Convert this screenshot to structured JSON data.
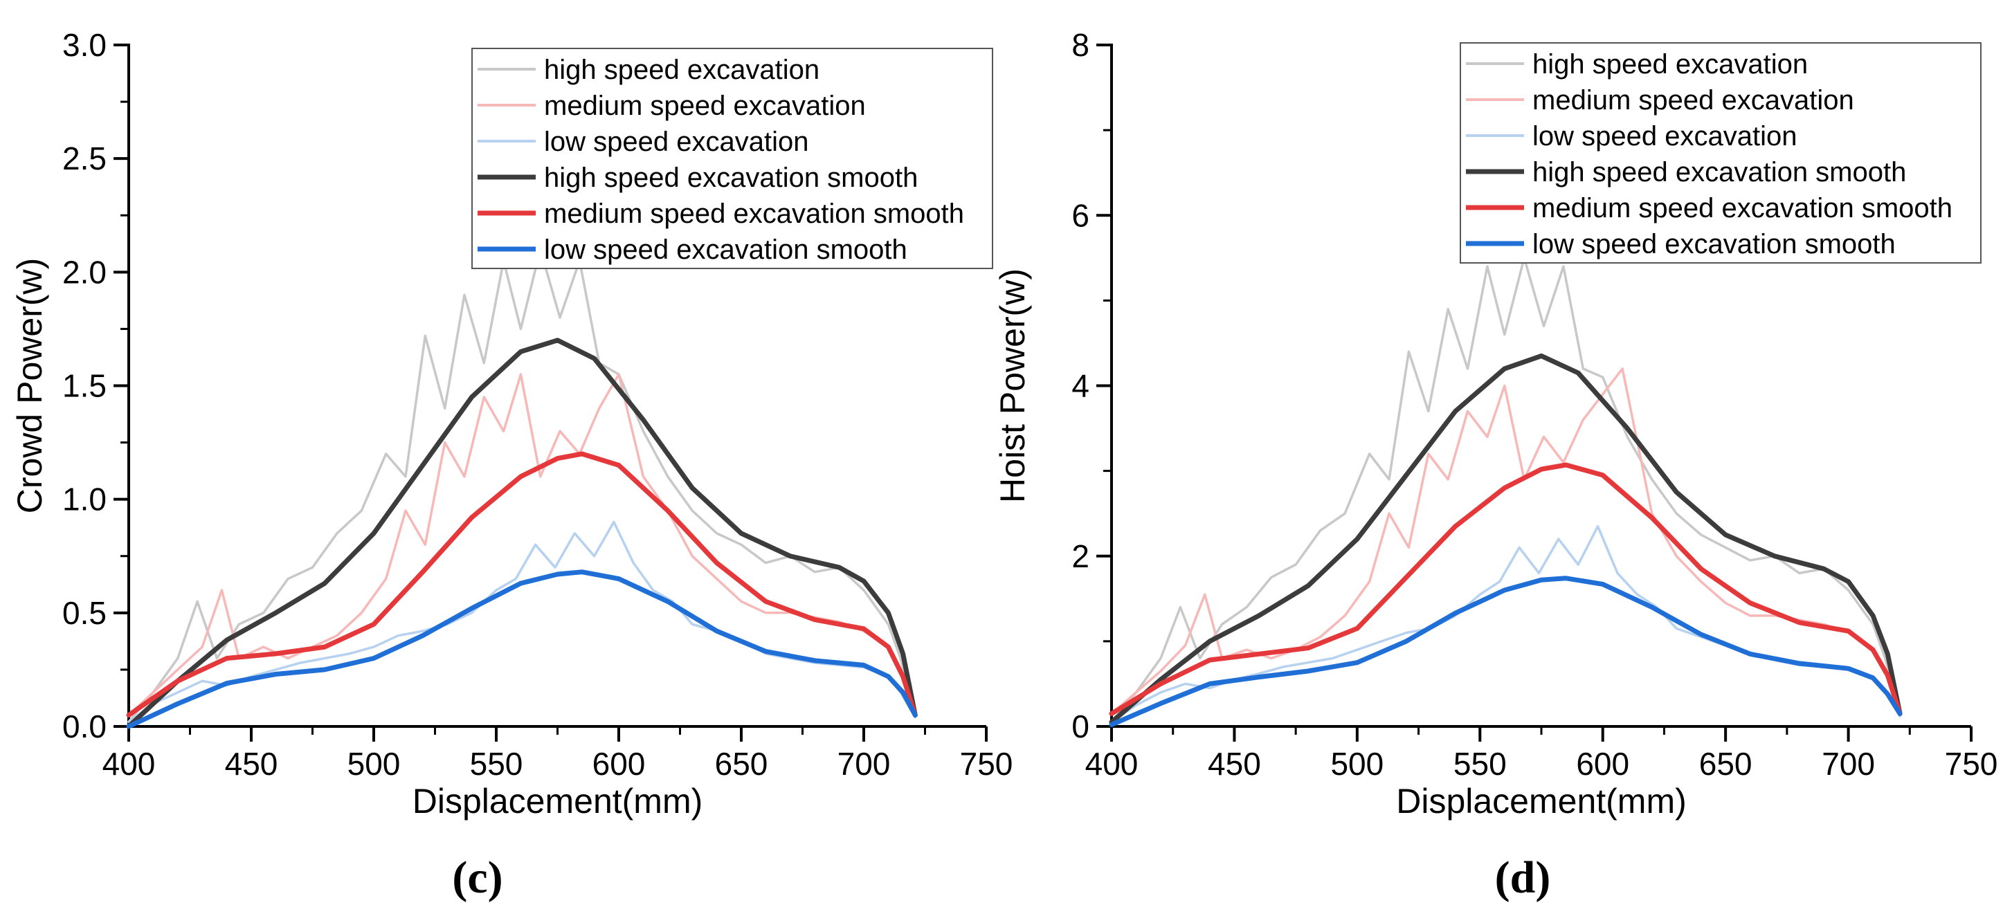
{
  "colors": {
    "high_raw": "#c8c8c8",
    "medium_raw": "#f7b8b8",
    "low_raw": "#b7d1f0",
    "high_smooth": "#3c3c3c",
    "medium_smooth": "#e5383b",
    "low_smooth": "#1f6fd6"
  },
  "chart_data": [
    {
      "type": "line",
      "panel_label": "(c)",
      "title": "",
      "xlabel": "Displacement(mm)",
      "ylabel": "Crowd Power(w)",
      "xlim": [
        400,
        750
      ],
      "ylim": [
        0,
        3.0
      ],
      "xticks": [
        400,
        450,
        500,
        550,
        600,
        650,
        700,
        750
      ],
      "yticks": [
        0.0,
        0.5,
        1.0,
        1.5,
        2.0,
        2.5,
        3.0
      ],
      "xtick_labels": [
        "400",
        "450",
        "500",
        "550",
        "600",
        "650",
        "700",
        "750"
      ],
      "ytick_labels": [
        "0.0",
        "0.5",
        "1.0",
        "1.5",
        "2.0",
        "2.5",
        "3.0"
      ],
      "legend_position": "top-right",
      "series": [
        {
          "name": "high speed excavation",
          "style": "raw",
          "color_key": "high_raw",
          "x": [
            400,
            410,
            420,
            428,
            436,
            445,
            455,
            465,
            475,
            485,
            495,
            505,
            513,
            521,
            529,
            537,
            545,
            553,
            560,
            568,
            576,
            584,
            592,
            600,
            610,
            620,
            630,
            640,
            650,
            660,
            670,
            680,
            690,
            700,
            710,
            715,
            721
          ],
          "y": [
            0.02,
            0.15,
            0.3,
            0.55,
            0.3,
            0.45,
            0.5,
            0.65,
            0.7,
            0.85,
            0.95,
            1.2,
            1.1,
            1.72,
            1.4,
            1.9,
            1.6,
            2.05,
            1.75,
            2.1,
            1.8,
            2.05,
            1.6,
            1.55,
            1.3,
            1.1,
            0.95,
            0.85,
            0.8,
            0.72,
            0.75,
            0.68,
            0.7,
            0.6,
            0.45,
            0.3,
            0.05
          ]
        },
        {
          "name": "medium speed excavation",
          "style": "raw",
          "color_key": "medium_raw",
          "x": [
            400,
            410,
            420,
            430,
            438,
            445,
            455,
            465,
            475,
            485,
            495,
            505,
            513,
            521,
            529,
            537,
            545,
            553,
            560,
            568,
            576,
            584,
            592,
            600,
            610,
            620,
            630,
            640,
            650,
            660,
            670,
            680,
            690,
            700,
            710,
            715,
            721
          ],
          "y": [
            0.05,
            0.15,
            0.25,
            0.35,
            0.6,
            0.3,
            0.35,
            0.3,
            0.35,
            0.4,
            0.5,
            0.65,
            0.95,
            0.8,
            1.25,
            1.1,
            1.45,
            1.3,
            1.55,
            1.1,
            1.3,
            1.2,
            1.4,
            1.55,
            1.1,
            0.95,
            0.75,
            0.65,
            0.55,
            0.5,
            0.5,
            0.48,
            0.46,
            0.42,
            0.35,
            0.25,
            0.05
          ]
        },
        {
          "name": "low speed excavation",
          "style": "raw",
          "color_key": "low_raw",
          "x": [
            400,
            410,
            420,
            430,
            440,
            450,
            460,
            470,
            480,
            490,
            500,
            510,
            520,
            530,
            540,
            550,
            558,
            566,
            574,
            582,
            590,
            598,
            606,
            614,
            622,
            630,
            640,
            650,
            660,
            670,
            680,
            690,
            700,
            710,
            715,
            721
          ],
          "y": [
            0.02,
            0.1,
            0.15,
            0.2,
            0.18,
            0.22,
            0.25,
            0.28,
            0.3,
            0.32,
            0.35,
            0.4,
            0.42,
            0.45,
            0.5,
            0.6,
            0.65,
            0.8,
            0.7,
            0.85,
            0.75,
            0.9,
            0.72,
            0.6,
            0.55,
            0.45,
            0.42,
            0.38,
            0.32,
            0.3,
            0.28,
            0.27,
            0.26,
            0.22,
            0.15,
            0.04
          ]
        },
        {
          "name": "high speed excavation smooth",
          "style": "smooth",
          "color_key": "high_smooth",
          "x": [
            400,
            420,
            440,
            460,
            480,
            500,
            520,
            540,
            560,
            575,
            590,
            610,
            630,
            650,
            670,
            690,
            700,
            710,
            716,
            721
          ],
          "y": [
            0.0,
            0.2,
            0.38,
            0.5,
            0.63,
            0.85,
            1.15,
            1.45,
            1.65,
            1.7,
            1.62,
            1.35,
            1.05,
            0.85,
            0.75,
            0.7,
            0.64,
            0.5,
            0.32,
            0.05
          ]
        },
        {
          "name": "medium speed excavation smooth",
          "style": "smooth",
          "color_key": "medium_smooth",
          "x": [
            400,
            420,
            440,
            460,
            480,
            500,
            520,
            540,
            560,
            575,
            585,
            600,
            620,
            640,
            660,
            680,
            700,
            710,
            716,
            721
          ],
          "y": [
            0.05,
            0.2,
            0.3,
            0.32,
            0.35,
            0.45,
            0.68,
            0.92,
            1.1,
            1.18,
            1.2,
            1.15,
            0.95,
            0.72,
            0.55,
            0.47,
            0.43,
            0.35,
            0.22,
            0.05
          ]
        },
        {
          "name": "low speed excavation smooth",
          "style": "smooth",
          "color_key": "low_smooth",
          "x": [
            400,
            420,
            440,
            460,
            480,
            500,
            520,
            540,
            560,
            575,
            585,
            600,
            620,
            640,
            660,
            680,
            700,
            710,
            716,
            721
          ],
          "y": [
            0.0,
            0.1,
            0.19,
            0.23,
            0.25,
            0.3,
            0.4,
            0.52,
            0.63,
            0.67,
            0.68,
            0.65,
            0.55,
            0.42,
            0.33,
            0.29,
            0.27,
            0.22,
            0.15,
            0.05
          ]
        }
      ]
    },
    {
      "type": "line",
      "panel_label": "(d)",
      "title": "",
      "xlabel": "Displacement(mm)",
      "ylabel": "Hoist Power(w)",
      "xlim": [
        400,
        750
      ],
      "ylim": [
        0,
        8
      ],
      "xticks": [
        400,
        450,
        500,
        550,
        600,
        650,
        700,
        750
      ],
      "yticks": [
        0,
        2,
        4,
        6,
        8
      ],
      "xtick_labels": [
        "400",
        "450",
        "500",
        "550",
        "600",
        "650",
        "700",
        "750"
      ],
      "ytick_labels": [
        "0",
        "2",
        "4",
        "6",
        "8"
      ],
      "legend_position": "top-right",
      "series": [
        {
          "name": "high speed excavation",
          "style": "raw",
          "color_key": "high_raw",
          "x": [
            400,
            410,
            420,
            428,
            436,
            445,
            455,
            465,
            475,
            485,
            495,
            505,
            513,
            521,
            529,
            537,
            545,
            553,
            560,
            568,
            576,
            584,
            592,
            600,
            610,
            620,
            630,
            640,
            650,
            660,
            670,
            680,
            690,
            700,
            710,
            715,
            721
          ],
          "y": [
            0.05,
            0.4,
            0.8,
            1.4,
            0.8,
            1.2,
            1.4,
            1.75,
            1.9,
            2.3,
            2.5,
            3.2,
            2.9,
            4.4,
            3.7,
            4.9,
            4.2,
            5.4,
            4.6,
            5.5,
            4.7,
            5.4,
            4.2,
            4.1,
            3.4,
            2.9,
            2.5,
            2.25,
            2.1,
            1.95,
            2.0,
            1.8,
            1.85,
            1.6,
            1.2,
            0.8,
            0.15
          ]
        },
        {
          "name": "medium speed excavation",
          "style": "raw",
          "color_key": "medium_raw",
          "x": [
            400,
            410,
            420,
            430,
            438,
            445,
            455,
            465,
            475,
            485,
            495,
            505,
            513,
            521,
            529,
            537,
            545,
            553,
            560,
            568,
            576,
            584,
            592,
            600,
            608,
            620,
            630,
            640,
            650,
            660,
            670,
            680,
            690,
            700,
            710,
            715,
            721
          ],
          "y": [
            0.15,
            0.4,
            0.65,
            0.95,
            1.55,
            0.8,
            0.9,
            0.8,
            0.9,
            1.05,
            1.3,
            1.7,
            2.5,
            2.1,
            3.2,
            2.9,
            3.7,
            3.4,
            4.0,
            2.9,
            3.4,
            3.1,
            3.6,
            3.9,
            4.2,
            2.5,
            2.0,
            1.7,
            1.45,
            1.3,
            1.3,
            1.25,
            1.2,
            1.1,
            0.9,
            0.65,
            0.15
          ]
        },
        {
          "name": "low speed excavation",
          "style": "raw",
          "color_key": "low_raw",
          "x": [
            400,
            410,
            420,
            430,
            440,
            450,
            460,
            470,
            480,
            490,
            500,
            510,
            520,
            530,
            540,
            550,
            558,
            566,
            574,
            582,
            590,
            598,
            606,
            614,
            622,
            630,
            640,
            650,
            660,
            670,
            680,
            690,
            700,
            710,
            715,
            721
          ],
          "y": [
            0.05,
            0.25,
            0.4,
            0.5,
            0.45,
            0.55,
            0.62,
            0.7,
            0.75,
            0.8,
            0.9,
            1.0,
            1.1,
            1.15,
            1.3,
            1.55,
            1.7,
            2.1,
            1.8,
            2.2,
            1.9,
            2.35,
            1.8,
            1.55,
            1.4,
            1.15,
            1.05,
            0.95,
            0.85,
            0.78,
            0.72,
            0.7,
            0.68,
            0.58,
            0.4,
            0.12
          ]
        },
        {
          "name": "high speed excavation smooth",
          "style": "smooth",
          "color_key": "high_smooth",
          "x": [
            400,
            420,
            440,
            460,
            480,
            500,
            520,
            540,
            560,
            575,
            590,
            610,
            630,
            650,
            670,
            690,
            700,
            710,
            716,
            721
          ],
          "y": [
            0.05,
            0.55,
            1.0,
            1.3,
            1.65,
            2.2,
            2.95,
            3.7,
            4.2,
            4.35,
            4.15,
            3.5,
            2.75,
            2.25,
            2.0,
            1.85,
            1.7,
            1.3,
            0.85,
            0.15
          ]
        },
        {
          "name": "medium speed excavation smooth",
          "style": "smooth",
          "color_key": "medium_smooth",
          "x": [
            400,
            420,
            440,
            460,
            480,
            500,
            520,
            540,
            560,
            575,
            585,
            600,
            620,
            640,
            660,
            680,
            700,
            710,
            716,
            721
          ],
          "y": [
            0.15,
            0.5,
            0.78,
            0.85,
            0.92,
            1.15,
            1.75,
            2.35,
            2.8,
            3.02,
            3.07,
            2.95,
            2.45,
            1.85,
            1.45,
            1.22,
            1.12,
            0.9,
            0.6,
            0.15
          ]
        },
        {
          "name": "low speed excavation smooth",
          "style": "smooth",
          "color_key": "low_smooth",
          "x": [
            400,
            420,
            440,
            460,
            480,
            500,
            520,
            540,
            560,
            575,
            585,
            600,
            620,
            640,
            660,
            680,
            700,
            710,
            716,
            721
          ],
          "y": [
            0.02,
            0.27,
            0.5,
            0.58,
            0.65,
            0.75,
            1.0,
            1.33,
            1.6,
            1.72,
            1.74,
            1.67,
            1.4,
            1.08,
            0.85,
            0.74,
            0.68,
            0.57,
            0.38,
            0.15
          ]
        }
      ]
    }
  ]
}
